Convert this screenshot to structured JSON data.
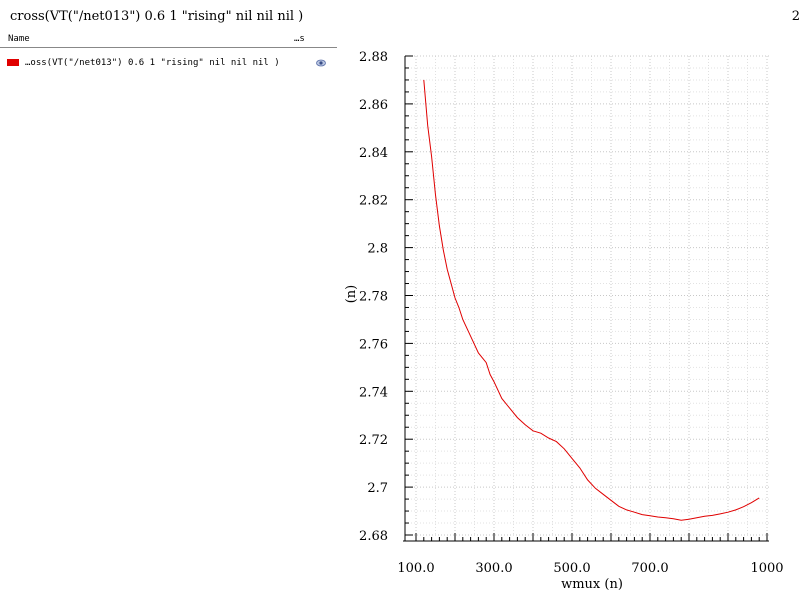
{
  "window": {
    "title": "cross(VT(\"/net013\") 0.6 1 \"rising\" nil nil  nil )",
    "corner_text": "2"
  },
  "legend": {
    "header_name": "Name",
    "header_vis": "…s",
    "items": [
      {
        "label": "…oss(VT(\"/net013\") 0.6 1 \"rising\" nil nil  nil )",
        "color": "#e00000",
        "icon": "eye-icon"
      }
    ]
  },
  "chart_data": {
    "type": "line",
    "title": "cross(VT(\"/net013\") 0.6 1 \"rising\" nil nil  nil )",
    "xlabel": "wmux (n)",
    "ylabel": "(n)",
    "xlim": [
      100,
      1000
    ],
    "ylim": [
      2.68,
      2.88
    ],
    "grid": true,
    "x_ticks": [
      {
        "value": 100,
        "label": "100.0"
      },
      {
        "value": 300,
        "label": "300.0"
      },
      {
        "value": 500,
        "label": "500.0"
      },
      {
        "value": 700,
        "label": "700.0"
      },
      {
        "value": 1000,
        "label": "1000"
      }
    ],
    "y_ticks": [
      {
        "value": 2.68,
        "label": "2.68"
      },
      {
        "value": 2.7,
        "label": "2.7"
      },
      {
        "value": 2.72,
        "label": "2.72"
      },
      {
        "value": 2.74,
        "label": "2.74"
      },
      {
        "value": 2.76,
        "label": "2.76"
      },
      {
        "value": 2.78,
        "label": "2.78"
      },
      {
        "value": 2.8,
        "label": "2.8"
      },
      {
        "value": 2.82,
        "label": "2.82"
      },
      {
        "value": 2.84,
        "label": "2.84"
      },
      {
        "value": 2.86,
        "label": "2.86"
      },
      {
        "value": 2.88,
        "label": "2.88"
      }
    ],
    "series": [
      {
        "color": "#e00000",
        "x": [
          120,
          130,
          140,
          150,
          160,
          170,
          180,
          190,
          200,
          210,
          220,
          240,
          260,
          280,
          290,
          300,
          320,
          340,
          360,
          380,
          400,
          420,
          440,
          460,
          480,
          500,
          520,
          540,
          560,
          580,
          600,
          620,
          640,
          660,
          680,
          700,
          720,
          740,
          760,
          780,
          800,
          820,
          840,
          860,
          880,
          900,
          920,
          940,
          960,
          980
        ],
        "y": [
          2.87,
          2.851,
          2.838,
          2.822,
          2.809,
          2.799,
          2.791,
          2.785,
          2.779,
          2.775,
          2.77,
          2.763,
          2.756,
          2.752,
          2.747,
          2.744,
          2.737,
          2.733,
          2.729,
          2.726,
          2.7235,
          2.7225,
          2.7205,
          2.719,
          2.716,
          2.712,
          2.708,
          2.703,
          2.6995,
          2.697,
          2.6945,
          2.692,
          2.6905,
          2.6895,
          2.6885,
          2.688,
          2.6875,
          2.6872,
          2.6868,
          2.6862,
          2.6866,
          2.6872,
          2.6878,
          2.6882,
          2.6888,
          2.6895,
          2.6905,
          2.6918,
          2.6935,
          2.6955
        ]
      }
    ]
  }
}
